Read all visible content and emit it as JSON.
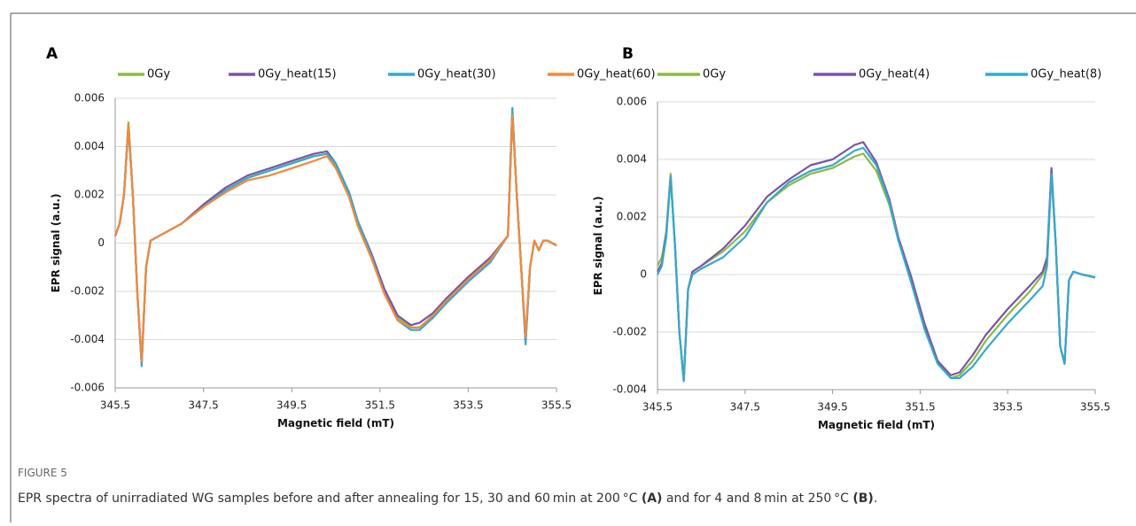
{
  "figure": {
    "label": "FIGURE 5",
    "caption": [
      "EPR spectra of unirradiated WG samples before and after annealing for 15, 30 and 60 min at 200 °C ",
      "(A)",
      " and for 4 and 8 min at 250 °C ",
      "(B)",
      "."
    ]
  },
  "chart_data": [
    {
      "type": "line",
      "panel_label": "A",
      "xlabel": "Magnetic field (mT)",
      "ylabel": "EPR signal (a.u.)",
      "xlim": [
        345.5,
        355.5
      ],
      "xticks": [
        345.5,
        347.5,
        349.5,
        351.5,
        353.5,
        355.5
      ],
      "ylim": [
        -0.006,
        0.006
      ],
      "yticks": [
        -0.006,
        -0.004,
        -0.002,
        0,
        0.002,
        0.004,
        0.006
      ],
      "grid": true,
      "legend": "top",
      "x": [
        345.5,
        345.6,
        345.7,
        345.8,
        345.9,
        346.0,
        346.1,
        346.2,
        346.3,
        346.5,
        347,
        347.5,
        348,
        348.5,
        349,
        349.5,
        350,
        350.3,
        350.5,
        350.8,
        351,
        351.3,
        351.6,
        351.9,
        352.2,
        352.4,
        352.7,
        353,
        353.5,
        354,
        354.4,
        354.5,
        354.6,
        354.7,
        354.8,
        354.9,
        355.0,
        355.1,
        355.2,
        355.3,
        355.5
      ],
      "series": [
        {
          "name": "0Gy",
          "color": "#8db944",
          "values": [
            0.0003,
            0.0008,
            0.002,
            0.005,
            0.002,
            -0.002,
            -0.005,
            -0.001,
            0.0001,
            0.0003,
            0.0008,
            0.0015,
            0.0022,
            0.0027,
            0.003,
            0.0033,
            0.0036,
            0.0037,
            0.0032,
            0.002,
            0.0008,
            -0.0005,
            -0.002,
            -0.0031,
            -0.0035,
            -0.0035,
            -0.003,
            -0.0024,
            -0.0015,
            -0.0007,
            0.0003,
            0.0055,
            0.002,
            -0.001,
            -0.004,
            -0.001,
            0.0001,
            -0.0003,
            0.0001,
            0.0001,
            -0.0001
          ]
        },
        {
          "name": "0Gy_heat(15)",
          "color": "#7a55a5",
          "values": [
            0.0003,
            0.0008,
            0.002,
            0.0049,
            0.002,
            -0.002,
            -0.005,
            -0.001,
            0.0001,
            0.0003,
            0.0008,
            0.0016,
            0.0023,
            0.0028,
            0.0031,
            0.0034,
            0.0037,
            0.0038,
            0.0033,
            0.0021,
            0.0009,
            -0.0004,
            -0.0019,
            -0.003,
            -0.0034,
            -0.0033,
            -0.0029,
            -0.0023,
            -0.0014,
            -0.0006,
            0.0003,
            0.0055,
            0.002,
            -0.001,
            -0.0041,
            -0.001,
            0.0001,
            -0.0003,
            0.0001,
            0.0001,
            -0.0001
          ]
        },
        {
          "name": "0Gy_heat(30)",
          "color": "#35a9cc",
          "values": [
            0.0003,
            0.0008,
            0.002,
            0.0048,
            0.002,
            -0.002,
            -0.0051,
            -0.001,
            0.0001,
            0.0003,
            0.0008,
            0.0015,
            0.0022,
            0.0027,
            0.003,
            0.0033,
            0.0036,
            0.0037,
            0.0033,
            0.0021,
            0.0009,
            -0.0005,
            -0.0021,
            -0.0032,
            -0.0036,
            -0.0036,
            -0.0031,
            -0.0025,
            -0.0016,
            -0.0008,
            0.0003,
            0.0056,
            0.002,
            -0.001,
            -0.0042,
            -0.001,
            0.0001,
            -0.0003,
            0.0001,
            0.0001,
            -0.0001
          ]
        },
        {
          "name": "0Gy_heat(60)",
          "color": "#f2893b",
          "values": [
            0.0003,
            0.0008,
            0.002,
            0.0049,
            0.002,
            -0.002,
            -0.0049,
            -0.001,
            0.0001,
            0.0003,
            0.0008,
            0.0015,
            0.0021,
            0.0026,
            0.0028,
            0.0031,
            0.0034,
            0.0036,
            0.0031,
            0.0019,
            0.0007,
            -0.0006,
            -0.0021,
            -0.0032,
            -0.0035,
            -0.0035,
            -0.003,
            -0.0024,
            -0.0015,
            -0.0007,
            0.0003,
            0.0053,
            0.002,
            -0.001,
            -0.0039,
            -0.001,
            0.0001,
            -0.0003,
            0.0001,
            0.0001,
            -0.0001
          ]
        }
      ]
    },
    {
      "type": "line",
      "panel_label": "B",
      "xlabel": "Magnetic field (mT)",
      "ylabel": "EPR signal (a.u.)",
      "xlim": [
        345.5,
        355.5
      ],
      "xticks": [
        345.5,
        347.5,
        349.5,
        351.5,
        353.5,
        355.5
      ],
      "ylim": [
        -0.004,
        0.006
      ],
      "yticks": [
        -0.004,
        -0.002,
        0,
        0.002,
        0.004,
        0.006
      ],
      "grid": true,
      "legend": "top",
      "x": [
        345.5,
        345.6,
        345.7,
        345.8,
        345.9,
        346.0,
        346.1,
        346.2,
        346.3,
        346.5,
        347,
        347.5,
        348,
        348.5,
        349,
        349.5,
        350,
        350.2,
        350.5,
        350.8,
        351,
        351.3,
        351.6,
        351.9,
        352.2,
        352.4,
        352.7,
        353,
        353.5,
        354,
        354.3,
        354.4,
        354.5,
        354.6,
        354.7,
        354.8,
        354.9,
        355.0,
        355.2,
        355.5
      ],
      "series": [
        {
          "name": "0Gy",
          "color": "#8db944",
          "values": [
            0.0003,
            0.0006,
            0.0015,
            0.0035,
            0.001,
            -0.002,
            -0.0037,
            -0.0005,
            0.0001,
            0.0003,
            0.0008,
            0.0015,
            0.0025,
            0.0031,
            0.0035,
            0.0037,
            0.0041,
            0.0042,
            0.0036,
            0.0024,
            0.0012,
            -0.0002,
            -0.0018,
            -0.003,
            -0.0036,
            -0.0035,
            -0.003,
            -0.0023,
            -0.0014,
            -0.0006,
            0,
            0.0005,
            0.0036,
            0.001,
            -0.0025,
            -0.0031,
            -0.0002,
            0.0001,
            0,
            -0.0001
          ]
        },
        {
          "name": "0Gy_heat(4)",
          "color": "#7a55a5",
          "values": [
            0.0001,
            0.0004,
            0.0014,
            0.0034,
            0.001,
            -0.002,
            -0.0037,
            -0.0005,
            0.0001,
            0.0003,
            0.0009,
            0.0017,
            0.0027,
            0.0033,
            0.0038,
            0.004,
            0.0045,
            0.0046,
            0.0039,
            0.0026,
            0.0013,
            -0.0001,
            -0.0017,
            -0.003,
            -0.0035,
            -0.0034,
            -0.0028,
            -0.0021,
            -0.0012,
            -0.0004,
            0.0001,
            0.0006,
            0.0037,
            0.001,
            -0.0025,
            -0.0031,
            -0.0002,
            0.0001,
            0,
            -0.0001
          ]
        },
        {
          "name": "0Gy_heat(8)",
          "color": "#35a9cc",
          "values": [
            0,
            0.0003,
            0.0013,
            0.0034,
            0.001,
            -0.002,
            -0.0037,
            -0.0005,
            0,
            0.0002,
            0.0006,
            0.0013,
            0.0025,
            0.0032,
            0.0036,
            0.0038,
            0.0043,
            0.0044,
            0.0038,
            0.0025,
            0.0012,
            -0.0003,
            -0.0019,
            -0.0031,
            -0.0036,
            -0.0036,
            -0.0032,
            -0.0026,
            -0.0017,
            -0.0009,
            -0.0004,
            0.0003,
            0.0035,
            0.001,
            -0.0025,
            -0.0031,
            -0.0002,
            0.0001,
            0,
            -0.0001
          ]
        }
      ]
    }
  ]
}
